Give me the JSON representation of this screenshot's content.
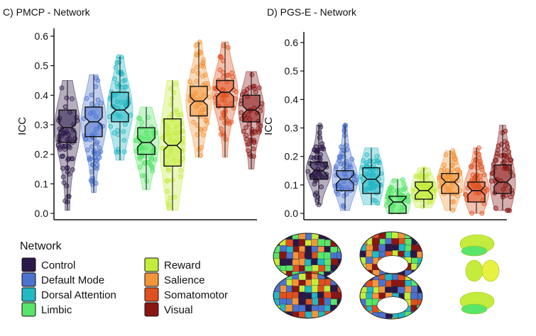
{
  "chart_data": [
    {
      "id": "pmcp",
      "type": "violin-box",
      "title": "C) PMCP - Network",
      "ylabel": "ICC",
      "ylim": [
        0,
        0.62
      ],
      "yticks": [
        "0.0",
        "0.1",
        "0.2",
        "0.3",
        "0.4",
        "0.5",
        "0.6"
      ],
      "series": [
        {
          "name": "Control",
          "min": 0.01,
          "q1": 0.24,
          "median": 0.29,
          "q3": 0.35,
          "max": 0.45
        },
        {
          "name": "Default Mode",
          "min": 0.07,
          "q1": 0.26,
          "median": 0.31,
          "q3": 0.36,
          "max": 0.47
        },
        {
          "name": "Dorsal Attention",
          "min": 0.18,
          "q1": 0.31,
          "median": 0.35,
          "q3": 0.41,
          "max": 0.53
        },
        {
          "name": "Limbic",
          "min": 0.08,
          "q1": 0.2,
          "median": 0.24,
          "q3": 0.29,
          "max": 0.36
        },
        {
          "name": "Reward",
          "min": 0.01,
          "q1": 0.16,
          "median": 0.23,
          "q3": 0.32,
          "max": 0.45
        },
        {
          "name": "Salience",
          "min": 0.19,
          "q1": 0.33,
          "median": 0.38,
          "q3": 0.43,
          "max": 0.58
        },
        {
          "name": "Somatomotor",
          "min": 0.19,
          "q1": 0.36,
          "median": 0.41,
          "q3": 0.45,
          "max": 0.58
        },
        {
          "name": "Visual",
          "min": 0.15,
          "q1": 0.31,
          "median": 0.35,
          "q3": 0.4,
          "max": 0.48
        }
      ]
    },
    {
      "id": "pgse",
      "type": "violin-box",
      "title": "D) PGS-E - Network",
      "ylabel": "ICC",
      "ylim": [
        -0.01,
        0.63
      ],
      "yticks": [
        "0.0",
        "0.1",
        "0.2",
        "0.3",
        "0.4",
        "0.5",
        "0.6"
      ],
      "series": [
        {
          "name": "Control",
          "min": 0.03,
          "q1": 0.12,
          "median": 0.15,
          "q3": 0.18,
          "max": 0.31
        },
        {
          "name": "Default Mode",
          "min": 0.01,
          "q1": 0.08,
          "median": 0.12,
          "q3": 0.15,
          "max": 0.31
        },
        {
          "name": "Dorsal Attention",
          "min": 0.03,
          "q1": 0.07,
          "median": 0.12,
          "q3": 0.16,
          "max": 0.23
        },
        {
          "name": "Limbic",
          "min": 0.0,
          "q1": 0.0,
          "median": 0.04,
          "q3": 0.06,
          "max": 0.12
        },
        {
          "name": "Reward",
          "min": 0.02,
          "q1": 0.05,
          "median": 0.08,
          "q3": 0.11,
          "max": 0.16
        },
        {
          "name": "Salience",
          "min": 0.01,
          "q1": 0.07,
          "median": 0.11,
          "q3": 0.14,
          "max": 0.22
        },
        {
          "name": "Somatomotor",
          "min": 0.0,
          "q1": 0.04,
          "median": 0.08,
          "q3": 0.11,
          "max": 0.23
        },
        {
          "name": "Visual",
          "min": 0.01,
          "q1": 0.07,
          "median": 0.11,
          "q3": 0.17,
          "max": 0.31
        }
      ]
    }
  ],
  "legend": {
    "title": "Network",
    "items": [
      {
        "label": "Control",
        "color": "#2a1848"
      },
      {
        "label": "Default Mode",
        "color": "#4b72cf"
      },
      {
        "label": "Dorsal Attention",
        "color": "#22b8c4"
      },
      {
        "label": "Limbic",
        "color": "#58e56a"
      },
      {
        "label": "Reward",
        "color": "#c4ec3c"
      },
      {
        "label": "Salience",
        "color": "#f3953a"
      },
      {
        "label": "Somatomotor",
        "color": "#e0501e"
      },
      {
        "label": "Visual",
        "color": "#8a1614"
      }
    ]
  },
  "brain_maps": {
    "cortex_colors": [
      "#2a1848",
      "#4b72cf",
      "#22b8c4",
      "#58e56a",
      "#c4ec3c",
      "#f3953a",
      "#e0501e",
      "#8a1614"
    ],
    "subcortex_colors": [
      "#c4ec3c",
      "#58e56a",
      "#e8f040"
    ]
  }
}
